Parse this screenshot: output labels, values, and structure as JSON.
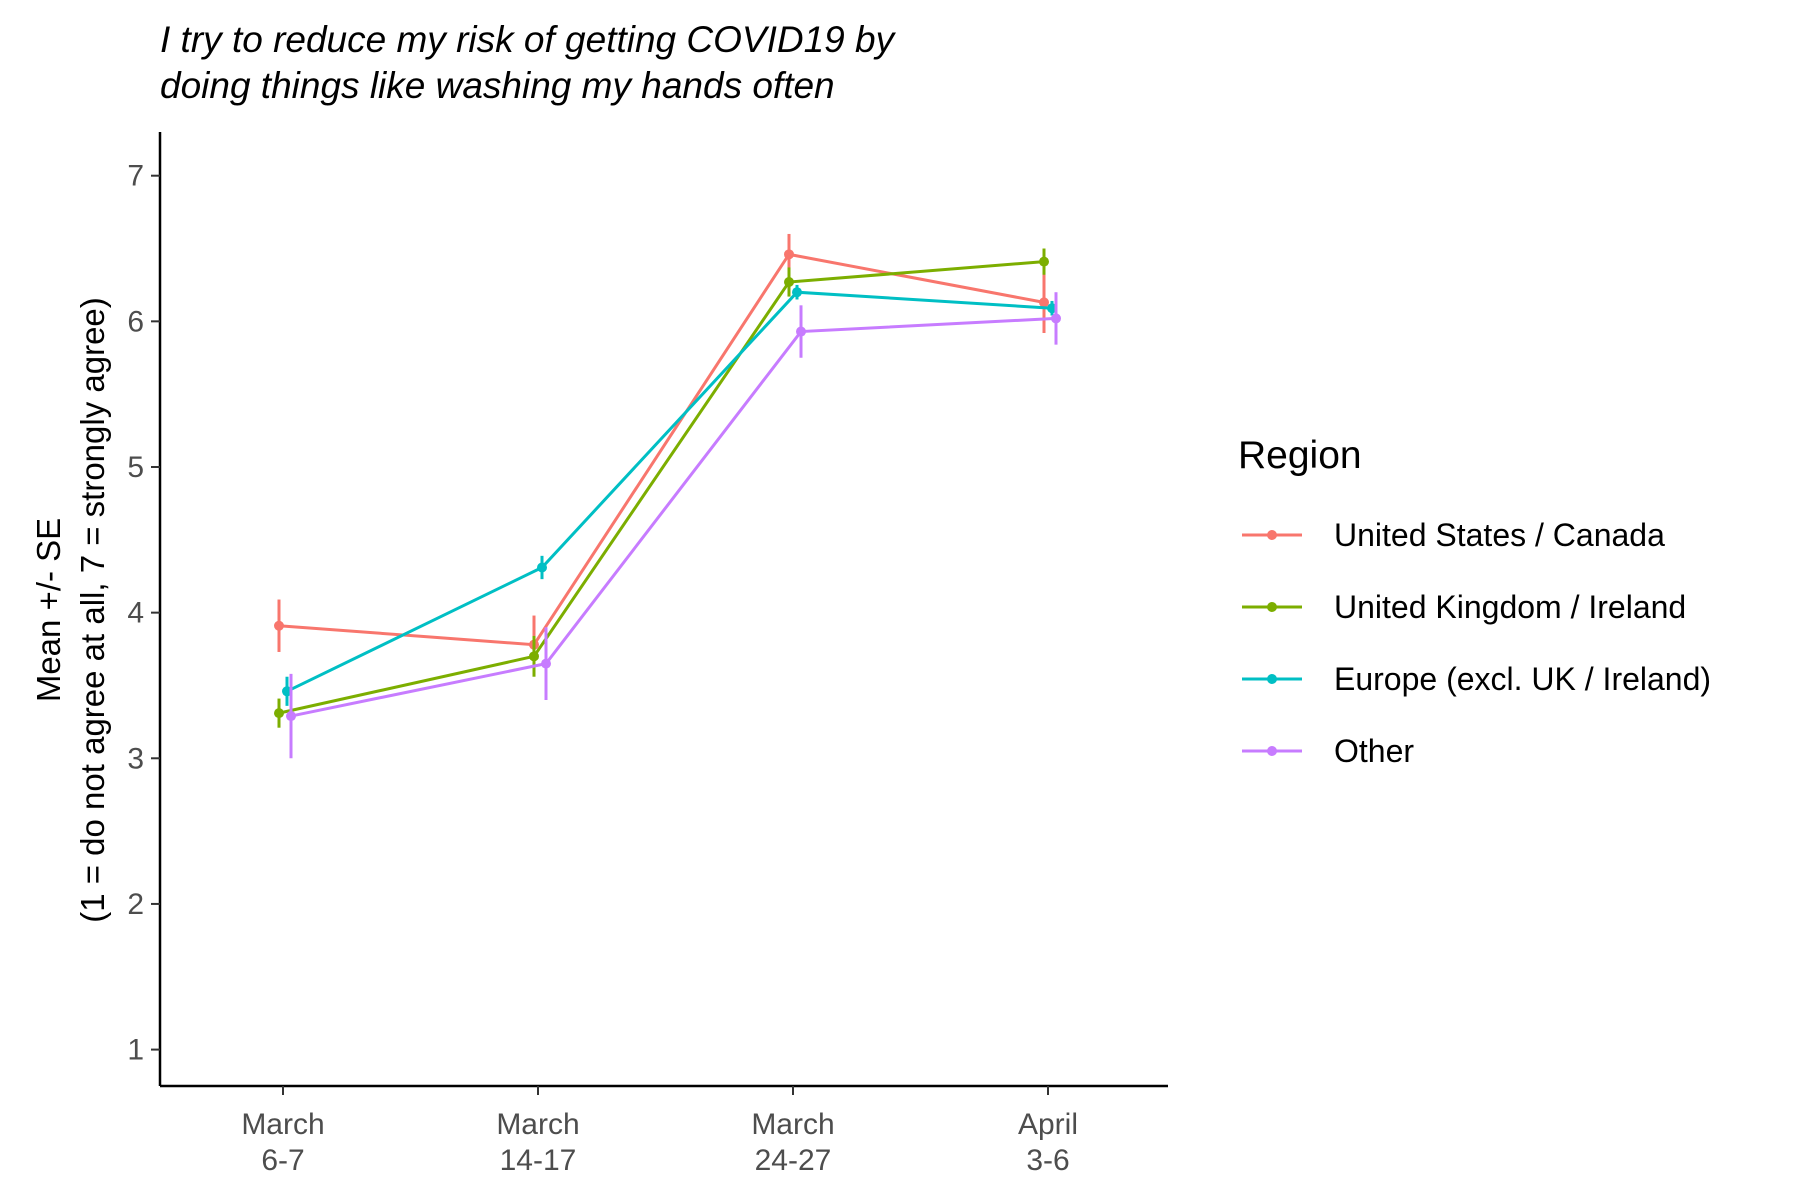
{
  "chart_data": {
    "type": "line",
    "title_lines": [
      "I try to reduce my risk of getting COVID19 by",
      "doing things like washing my hands often"
    ],
    "ylabel_lines": [
      "Mean +/- SE",
      "(1 = do not agree at all, 7 = strongly agree)"
    ],
    "xlabel": "",
    "categories": [
      {
        "line1": "March",
        "line2": "6-7"
      },
      {
        "line1": "March",
        "line2": "14-17"
      },
      {
        "line1": "March",
        "line2": "24-27"
      },
      {
        "line1": "April",
        "line2": "3-6"
      }
    ],
    "ylim": [
      0.75,
      7.3
    ],
    "yticks": [
      "1",
      "2",
      "3",
      "4",
      "5",
      "6",
      "7"
    ],
    "grid": false,
    "legend": {
      "title": "Region",
      "position": "right"
    },
    "series": [
      {
        "name": "United States / Canada",
        "color": "#F8766D",
        "values": [
          3.91,
          3.78,
          6.46,
          6.13
        ],
        "se": [
          0.18,
          0.2,
          0.14,
          0.21
        ]
      },
      {
        "name": "United Kingdom / Ireland",
        "color": "#7CAE00",
        "values": [
          3.31,
          3.7,
          6.27,
          6.41
        ],
        "se": [
          0.1,
          0.14,
          0.1,
          0.09
        ]
      },
      {
        "name": "Europe (excl. UK / Ireland)",
        "color": "#00BFC4",
        "values": [
          3.46,
          4.31,
          6.2,
          6.09
        ],
        "se": [
          0.1,
          0.08,
          0.05,
          0.05
        ]
      },
      {
        "name": "Other",
        "color": "#C77CFF",
        "values": [
          3.29,
          3.65,
          5.93,
          6.02
        ],
        "se": [
          0.29,
          0.25,
          0.18,
          0.18
        ]
      }
    ]
  }
}
